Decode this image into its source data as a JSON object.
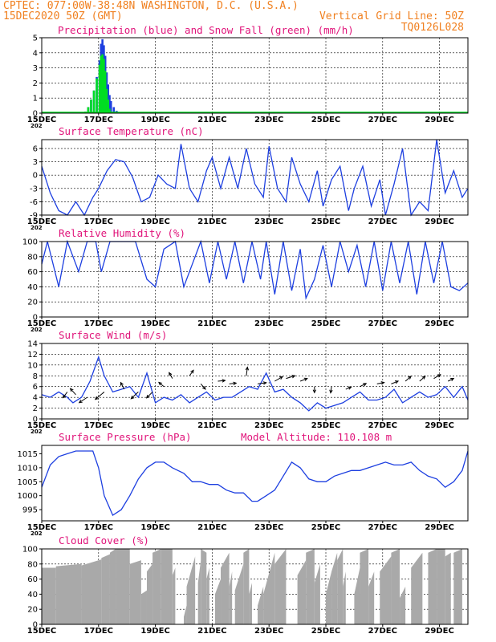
{
  "header": {
    "line1_left": "CPTEC:   077:00W-38:48N   WASHINGTON, D.C. (U.S.A.)",
    "line2_left": "15DEC2020 50Z (GMT)",
    "line2_right": "Vertical Grid Line: 50Z",
    "line3_right": "TQ0126L028"
  },
  "year_stub": "202",
  "chart_data": [
    {
      "type": "bar",
      "title": "Precipitation (blue) and Snow Fall (green) (mm/h)",
      "x_ticks": [
        "15DEC",
        "17DEC",
        "19DEC",
        "21DEC",
        "23DEC",
        "25DEC",
        "27DEC",
        "29DEC"
      ],
      "y_ticks": [
        0,
        1,
        2,
        3,
        4,
        5
      ],
      "ylim": [
        0,
        5
      ],
      "grid": true,
      "series": [
        {
          "name": "precipitation",
          "color": "#1d3fe0",
          "x": [
            16.4,
            16.5,
            16.6,
            16.7,
            16.8,
            16.9,
            17.0,
            17.05,
            17.1,
            17.15,
            17.2,
            17.25,
            17.3,
            17.35,
            17.4,
            17.5,
            17.6,
            17.7
          ],
          "values": [
            0.02,
            0.1,
            0.4,
            0.9,
            1.5,
            2.4,
            3.5,
            4.6,
            4.9,
            4.5,
            3.8,
            2.7,
            1.9,
            1.2,
            0.8,
            0.4,
            0.15,
            0.05
          ]
        },
        {
          "name": "snow fall",
          "color": "#00dd22",
          "x": [
            16.4,
            16.5,
            16.6,
            16.7,
            16.8,
            16.9,
            17.0,
            17.05,
            17.1,
            17.15,
            17.2,
            17.25,
            17.3,
            17.35,
            17.4,
            17.5
          ],
          "values": [
            0.02,
            0.1,
            0.4,
            0.9,
            1.5,
            2.3,
            3.2,
            3.8,
            3.9,
            3.6,
            2.8,
            1.6,
            0.9,
            0.3,
            0.1,
            0.02
          ]
        }
      ]
    },
    {
      "type": "line",
      "title": "Surface Temperature (nC)",
      "x_ticks": [
        "15DEC",
        "17DEC",
        "19DEC",
        "21DEC",
        "23DEC",
        "25DEC",
        "27DEC",
        "29DEC"
      ],
      "y_ticks": [
        -9,
        -6,
        -3,
        0,
        3,
        6
      ],
      "ylim": [
        -9,
        8
      ],
      "grid": true,
      "series": [
        {
          "color": "#1d3fe0",
          "x": [
            15,
            15.3,
            15.6,
            15.9,
            16.2,
            16.5,
            16.8,
            17.0,
            17.3,
            17.6,
            17.9,
            18.2,
            18.5,
            18.8,
            19.1,
            19.4,
            19.7,
            19.9,
            20.2,
            20.5,
            20.8,
            21.0,
            21.3,
            21.6,
            21.9,
            22.2,
            22.5,
            22.8,
            23.0,
            23.3,
            23.6,
            23.8,
            24.1,
            24.4,
            24.7,
            24.9,
            25.2,
            25.5,
            25.8,
            26.0,
            26.3,
            26.6,
            26.9,
            27.1,
            27.4,
            27.7,
            28.0,
            28.3,
            28.6,
            28.9,
            29.2,
            29.5,
            29.8,
            30.0
          ],
          "values": [
            2,
            -4,
            -8,
            -9,
            -6,
            -9,
            -5,
            -3,
            1,
            3.5,
            3,
            -0.5,
            -6,
            -5,
            0,
            -2,
            -3,
            7,
            -3,
            -6,
            1,
            4,
            -3,
            4,
            -3,
            6,
            -2,
            -5,
            6.5,
            -3,
            -6,
            4,
            -2,
            -6,
            1,
            -7,
            -1,
            2,
            -8,
            -3,
            2,
            -7,
            -1,
            -9,
            -2,
            6,
            -9,
            -6,
            -8,
            8,
            -4,
            1,
            -5,
            -3
          ]
        }
      ]
    },
    {
      "type": "line",
      "title": "Relative Humidity (%)",
      "x_ticks": [
        "15DEC",
        "17DEC",
        "19DEC",
        "21DEC",
        "23DEC",
        "25DEC",
        "27DEC",
        "29DEC"
      ],
      "y_ticks": [
        0,
        20,
        40,
        60,
        80,
        100
      ],
      "ylim": [
        0,
        100
      ],
      "grid": true,
      "series": [
        {
          "color": "#1d3fe0",
          "x": [
            15,
            15.2,
            15.6,
            15.9,
            16.3,
            16.6,
            16.9,
            17.1,
            17.4,
            17.7,
            18.0,
            18.3,
            18.7,
            19.0,
            19.3,
            19.7,
            20.0,
            20.3,
            20.6,
            20.9,
            21.2,
            21.5,
            21.8,
            22.1,
            22.4,
            22.7,
            22.9,
            23.2,
            23.5,
            23.8,
            24.1,
            24.3,
            24.6,
            24.9,
            25.2,
            25.5,
            25.8,
            26.1,
            26.4,
            26.7,
            27.0,
            27.3,
            27.6,
            27.9,
            28.2,
            28.5,
            28.8,
            29.1,
            29.4,
            29.7,
            30.0
          ],
          "values": [
            70,
            100,
            40,
            100,
            60,
            100,
            100,
            60,
            100,
            100,
            100,
            100,
            50,
            40,
            90,
            100,
            40,
            70,
            100,
            45,
            100,
            50,
            100,
            45,
            100,
            50,
            100,
            30,
            100,
            35,
            90,
            25,
            50,
            95,
            40,
            100,
            60,
            95,
            40,
            100,
            35,
            100,
            45,
            100,
            30,
            100,
            45,
            100,
            40,
            35,
            45
          ]
        }
      ]
    },
    {
      "type": "line",
      "title": "Surface Wind (m/s)",
      "x_ticks": [
        "15DEC",
        "17DEC",
        "19DEC",
        "21DEC",
        "23DEC",
        "25DEC",
        "27DEC",
        "29DEC"
      ],
      "y_ticks": [
        0,
        2,
        4,
        6,
        8,
        10,
        12,
        14
      ],
      "ylim": [
        0,
        14
      ],
      "grid": true,
      "series": [
        {
          "color": "#1d3fe0",
          "x": [
            15,
            15.3,
            15.6,
            15.9,
            16.1,
            16.4,
            16.7,
            17.0,
            17.2,
            17.5,
            17.8,
            18.1,
            18.4,
            18.7,
            19.0,
            19.3,
            19.6,
            19.9,
            20.2,
            20.5,
            20.8,
            21.1,
            21.4,
            21.7,
            22.0,
            22.3,
            22.6,
            22.9,
            23.2,
            23.5,
            23.8,
            24.1,
            24.4,
            24.7,
            25.0,
            25.3,
            25.6,
            25.9,
            26.2,
            26.5,
            26.8,
            27.1,
            27.4,
            27.7,
            28.0,
            28.3,
            28.6,
            28.9,
            29.2,
            29.5,
            29.8,
            30.0
          ],
          "values": [
            4.5,
            4,
            5,
            4,
            3,
            4,
            7,
            11.5,
            8,
            5,
            5.5,
            6,
            4,
            8.5,
            3,
            4,
            3.5,
            4.5,
            3,
            4,
            5,
            3.5,
            4,
            4,
            5,
            6,
            5.5,
            8.5,
            5,
            5.5,
            4,
            3,
            1.5,
            3,
            2,
            2.5,
            3,
            4,
            5,
            3.5,
            3.5,
            4,
            5.5,
            3,
            4,
            5,
            4,
            4.5,
            6,
            4,
            6,
            3.5
          ]
        }
      ],
      "arrows": {
        "x": [
          15.9,
          16.2,
          16.6,
          17.2,
          17.9,
          18.4,
          18.9,
          19.3,
          19.6,
          20.2,
          20.6,
          21.2,
          21.6,
          22.2,
          22.6,
          23.2,
          23.6,
          24.1,
          24.6,
          25.2,
          25.7,
          26.2,
          26.8,
          27.3,
          27.8,
          28.3,
          28.8,
          29.3
        ],
        "y": [
          5,
          4.5,
          4,
          5,
          5.5,
          5,
          5,
          6,
          7.5,
          8,
          6.5,
          7,
          6.5,
          8,
          6.5,
          7,
          7.5,
          7,
          6,
          6,
          5.5,
          6,
          6.5,
          6.5,
          7,
          7,
          7.5,
          7
        ],
        "u": [
          -0.6,
          -0.9,
          -1.5,
          -2.4,
          -0.5,
          -1.4,
          -1.0,
          -0.6,
          -0.4,
          0.5,
          0.6,
          1.0,
          0.9,
          0.2,
          1.5,
          1.4,
          1.6,
          1.0,
          0.0,
          -0.1,
          0.5,
          0.8,
          1.0,
          1.0,
          0.8,
          0.8,
          1.0,
          0.6
        ],
        "v": [
          -0.8,
          1.0,
          -1.0,
          -2.0,
          1.0,
          -1.3,
          -1.0,
          0.5,
          0.7,
          0.7,
          -0.7,
          0.1,
          0.1,
          1.5,
          0.2,
          0.8,
          0.5,
          0.4,
          -0.6,
          -0.7,
          0.2,
          0.4,
          0.2,
          0.4,
          0.7,
          0.7,
          0.6,
          0.3
        ]
      }
    },
    {
      "type": "line",
      "title": "Surface Pressure (hPa)",
      "annotation": "Model Altitude: 110.108  m",
      "x_ticks": [
        "15DEC",
        "17DEC",
        "19DEC",
        "21DEC",
        "23DEC",
        "25DEC",
        "27DEC",
        "29DEC"
      ],
      "y_ticks": [
        995,
        1000,
        1005,
        1010,
        1015
      ],
      "ylim": [
        991,
        1018
      ],
      "grid": false,
      "series": [
        {
          "color": "#1d3fe0",
          "x": [
            15,
            15.3,
            15.6,
            15.9,
            16.2,
            16.5,
            16.8,
            17.0,
            17.2,
            17.5,
            17.8,
            18.1,
            18.4,
            18.7,
            19.0,
            19.3,
            19.6,
            20.0,
            20.3,
            20.6,
            20.9,
            21.2,
            21.5,
            21.8,
            22.1,
            22.4,
            22.6,
            22.9,
            23.2,
            23.5,
            23.8,
            24.1,
            24.4,
            24.7,
            25.0,
            25.3,
            25.6,
            25.9,
            26.2,
            26.5,
            26.8,
            27.1,
            27.4,
            27.7,
            28.0,
            28.3,
            28.6,
            28.9,
            29.2,
            29.5,
            29.8,
            30.0
          ],
          "values": [
            1003,
            1011,
            1014,
            1015,
            1016,
            1016,
            1016,
            1010,
            1000,
            993,
            995,
            1000,
            1006,
            1010,
            1012,
            1012,
            1010,
            1008,
            1005,
            1005,
            1004,
            1004,
            1002,
            1001,
            1001,
            998,
            998,
            1000,
            1002,
            1007,
            1012,
            1010,
            1006,
            1005,
            1005,
            1007,
            1008,
            1009,
            1009,
            1010,
            1011,
            1012,
            1011,
            1011,
            1012,
            1009,
            1007,
            1006,
            1003,
            1005,
            1009,
            1016
          ]
        }
      ]
    },
    {
      "type": "bar",
      "title": "Cloud Cover (%)",
      "x_ticks": [
        "15DEC",
        "17DEC",
        "19DEC",
        "21DEC",
        "23DEC",
        "25DEC",
        "27DEC",
        "29DEC"
      ],
      "y_ticks": [
        0,
        20,
        40,
        60,
        80,
        100
      ],
      "ylim": [
        0,
        100
      ],
      "grid": true,
      "series": [
        {
          "color": "#a9a9a9",
          "segments": [
            [
              15.0,
              15.5,
              75,
              75
            ],
            [
              15.5,
              16.4,
              77,
              80
            ],
            [
              16.4,
              17.1,
              78,
              86
            ],
            [
              17.1,
              17.4,
              88,
              93
            ],
            [
              17.4,
              17.6,
              95,
              100
            ],
            [
              17.6,
              18.1,
              100,
              100
            ],
            [
              18.1,
              18.5,
              80,
              85
            ],
            [
              18.5,
              18.7,
              40,
              45
            ],
            [
              18.7,
              18.9,
              70,
              80
            ],
            [
              18.9,
              19.2,
              95,
              100
            ],
            [
              19.2,
              19.6,
              100,
              100
            ],
            [
              19.6,
              19.7,
              65,
              75
            ],
            [
              20.0,
              20.1,
              10,
              25
            ],
            [
              20.1,
              20.4,
              50,
              90
            ],
            [
              20.5,
              20.6,
              55,
              85
            ],
            [
              20.6,
              20.8,
              100,
              95
            ],
            [
              20.8,
              20.9,
              60,
              75
            ],
            [
              21.1,
              21.3,
              40,
              60
            ],
            [
              21.3,
              21.6,
              75,
              95
            ],
            [
              21.6,
              21.7,
              50,
              70
            ],
            [
              21.8,
              22.1,
              45,
              80
            ],
            [
              22.1,
              22.3,
              95,
              100
            ],
            [
              22.3,
              22.4,
              40,
              55
            ],
            [
              22.6,
              22.8,
              25,
              50
            ],
            [
              22.8,
              23.2,
              40,
              95
            ],
            [
              23.2,
              23.6,
              80,
              100
            ],
            [
              24.0,
              24.3,
              65,
              85
            ],
            [
              24.3,
              24.6,
              95,
              100
            ],
            [
              24.6,
              24.8,
              55,
              80
            ],
            [
              25.0,
              25.2,
              40,
              70
            ],
            [
              25.2,
              25.4,
              70,
              95
            ],
            [
              25.4,
              25.6,
              85,
              100
            ],
            [
              25.6,
              25.7,
              50,
              70
            ],
            [
              26.0,
              26.2,
              40,
              75
            ],
            [
              26.2,
              26.5,
              95,
              100
            ],
            [
              26.5,
              26.7,
              50,
              70
            ],
            [
              26.9,
              27.3,
              70,
              90
            ],
            [
              27.3,
              27.6,
              95,
              100
            ],
            [
              27.6,
              27.8,
              35,
              50
            ],
            [
              28.0,
              28.4,
              75,
              95
            ],
            [
              28.6,
              28.9,
              95,
              100
            ],
            [
              28.9,
              29.2,
              100,
              100
            ],
            [
              29.2,
              29.4,
              90,
              95
            ],
            [
              29.5,
              29.8,
              95,
              100
            ]
          ]
        }
      ]
    }
  ]
}
